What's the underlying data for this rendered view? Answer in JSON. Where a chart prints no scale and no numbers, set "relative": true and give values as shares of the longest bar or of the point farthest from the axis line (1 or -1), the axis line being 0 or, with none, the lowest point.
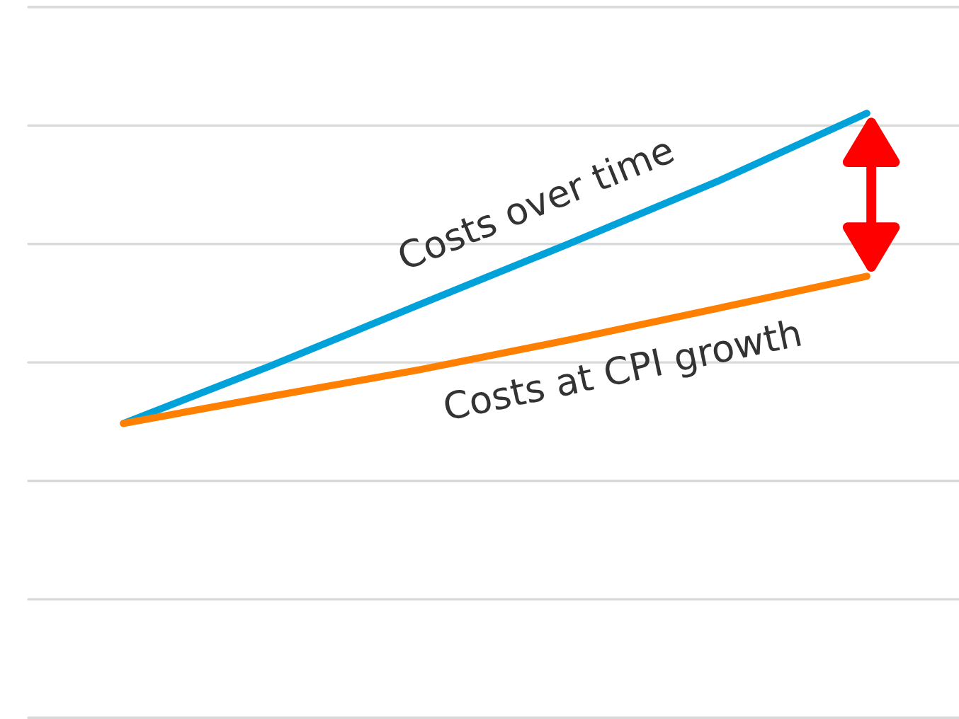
{
  "chart_data": {
    "type": "line",
    "relative": true,
    "categories": [
      null,
      null,
      null,
      null,
      null,
      null
    ],
    "series": [
      {
        "name": "Costs over time",
        "color": "#00a2d9",
        "values": [
          0.488,
          0.584,
          0.685,
          0.785,
          0.888,
          1
        ]
      },
      {
        "name": "Costs at CPI growth",
        "color": "#ff8000",
        "values": [
          0.488,
          0.533,
          0.577,
          0.626,
          0.678,
          0.731
        ]
      }
    ],
    "grid": "y",
    "legend": false,
    "marker": "none",
    "line_style": "solid"
  }
}
